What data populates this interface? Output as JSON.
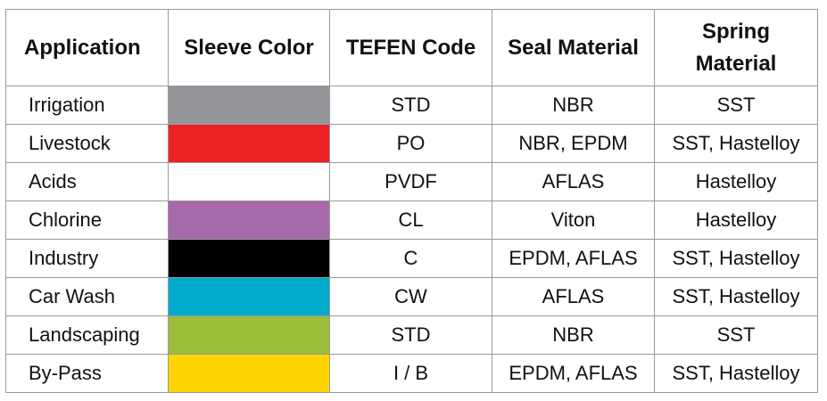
{
  "table": {
    "header": [
      "Application",
      "Sleeve Color",
      "TEFEN Code",
      "Seal Material",
      "Spring Material"
    ],
    "rows": [
      [
        "Irrigation",
        "STD",
        "NBR",
        "SST"
      ],
      [
        "Livestock",
        "PO",
        "NBR, EPDM",
        "SST, Hastelloy"
      ],
      [
        "Acids",
        "PVDF",
        "AFLAS",
        "Hastelloy"
      ],
      [
        "Chlorine",
        "CL",
        "Viton",
        "Hastelloy"
      ],
      [
        "Industry",
        "C",
        "EPDM, AFLAS",
        "SST, Hastelloy"
      ],
      [
        "Car Wash",
        "CW",
        "AFLAS",
        "SST, Hastelloy"
      ],
      [
        "Landscaping",
        "STD",
        "NBR",
        "SST"
      ],
      [
        "By-Pass",
        "I / B",
        "EPDM, AFLAS",
        "SST, Hastelloy"
      ]
    ],
    "sleeve_colors": [
      "#939598",
      "#ed2024",
      "#ffffff",
      "#a66aad",
      "#000000",
      "#00aacc",
      "#9bbd3a",
      "#ffd500"
    ]
  }
}
